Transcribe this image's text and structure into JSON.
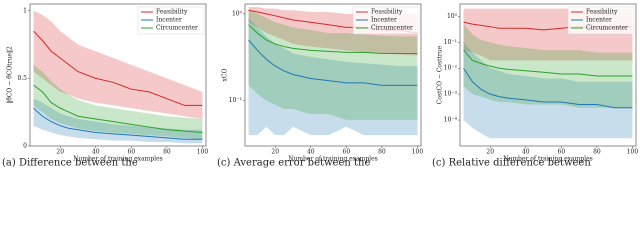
{
  "chart_data": [
    {
      "type": "line",
      "caption": "(a) Difference between the",
      "x_label": "Number of training examples",
      "y_label": "‖θ̂CO − θ̂COtrue‖2",
      "log_y": false,
      "legend": "upper right",
      "xlim": [
        3,
        102
      ],
      "xticks": [
        20,
        40,
        60,
        80,
        100
      ],
      "ylim": [
        0,
        1.05
      ],
      "yticks": [
        0,
        0.5,
        1
      ],
      "x": [
        5,
        10,
        15,
        20,
        25,
        30,
        40,
        50,
        60,
        70,
        80,
        90,
        100
      ],
      "series": [
        {
          "name": "Feasibility",
          "color": "#d62728",
          "values": [
            0.85,
            0.78,
            0.7,
            0.65,
            0.6,
            0.55,
            0.5,
            0.47,
            0.42,
            0.4,
            0.35,
            0.3,
            0.3
          ],
          "lower": [
            0.55,
            0.5,
            0.45,
            0.4,
            0.38,
            0.35,
            0.32,
            0.3,
            0.28,
            0.26,
            0.24,
            0.22,
            0.2
          ],
          "upper": [
            1.0,
            0.97,
            0.92,
            0.85,
            0.8,
            0.75,
            0.7,
            0.65,
            0.6,
            0.55,
            0.5,
            0.45,
            0.4
          ]
        },
        {
          "name": "Incenter",
          "color": "#1f77b4",
          "values": [
            0.28,
            0.22,
            0.18,
            0.15,
            0.13,
            0.12,
            0.1,
            0.09,
            0.08,
            0.07,
            0.06,
            0.05,
            0.05
          ],
          "lower": [
            0.15,
            0.12,
            0.1,
            0.08,
            0.07,
            0.06,
            0.05,
            0.04,
            0.04,
            0.03,
            0.03,
            0.02,
            0.02
          ],
          "upper": [
            0.35,
            0.32,
            0.28,
            0.24,
            0.22,
            0.2,
            0.18,
            0.16,
            0.15,
            0.14,
            0.13,
            0.12,
            0.12
          ]
        },
        {
          "name": "Circumcenter",
          "color": "#2ca02c",
          "values": [
            0.45,
            0.4,
            0.32,
            0.28,
            0.25,
            0.22,
            0.2,
            0.18,
            0.16,
            0.14,
            0.12,
            0.11,
            0.1
          ],
          "lower": [
            0.3,
            0.25,
            0.2,
            0.17,
            0.15,
            0.13,
            0.11,
            0.1,
            0.09,
            0.08,
            0.07,
            0.06,
            0.05
          ],
          "upper": [
            0.6,
            0.55,
            0.48,
            0.42,
            0.38,
            0.34,
            0.3,
            0.28,
            0.26,
            0.24,
            0.22,
            0.21,
            0.2
          ]
        }
      ]
    },
    {
      "type": "line",
      "caption": "(c) Average error between the",
      "x_label": "Number of training examples",
      "y_label": "xCO",
      "log_y": true,
      "legend": "upper right",
      "xlim": [
        3,
        102
      ],
      "xticks": [
        20,
        40,
        60,
        80,
        100
      ],
      "ylim": [
        0.03,
        1.3
      ],
      "yticks": [
        {
          "value": 0.1,
          "label": "10⁻¹"
        },
        {
          "value": 1,
          "label": "10⁰"
        }
      ],
      "x": [
        5,
        10,
        15,
        20,
        25,
        30,
        40,
        50,
        60,
        70,
        80,
        90,
        100
      ],
      "series": [
        {
          "name": "Feasibility",
          "color": "#d62728",
          "values": [
            1.1,
            1.05,
            1.0,
            0.95,
            0.9,
            0.85,
            0.8,
            0.75,
            0.7,
            0.7,
            0.65,
            0.65,
            0.6
          ],
          "lower": [
            0.8,
            0.7,
            0.6,
            0.55,
            0.5,
            0.45,
            0.42,
            0.4,
            0.38,
            0.36,
            0.35,
            0.34,
            0.33
          ],
          "upper": [
            1.2,
            1.2,
            1.15,
            1.15,
            1.1,
            1.1,
            1.05,
            1.05,
            1.0,
            1.0,
            1.0,
            1.0,
            1.0
          ]
        },
        {
          "name": "Incenter",
          "color": "#1f77b4",
          "values": [
            0.5,
            0.38,
            0.3,
            0.25,
            0.22,
            0.2,
            0.18,
            0.17,
            0.16,
            0.16,
            0.15,
            0.15,
            0.15
          ],
          "lower": [
            0.04,
            0.04,
            0.05,
            0.04,
            0.04,
            0.05,
            0.04,
            0.04,
            0.05,
            0.04,
            0.04,
            0.04,
            0.04
          ],
          "upper": [
            0.9,
            0.7,
            0.55,
            0.45,
            0.4,
            0.35,
            0.32,
            0.3,
            0.28,
            0.27,
            0.26,
            0.25,
            0.25
          ]
        },
        {
          "name": "Circumcenter",
          "color": "#2ca02c",
          "values": [
            0.75,
            0.6,
            0.5,
            0.45,
            0.42,
            0.4,
            0.38,
            0.37,
            0.36,
            0.36,
            0.35,
            0.35,
            0.35
          ],
          "lower": [
            0.15,
            0.12,
            0.1,
            0.09,
            0.08,
            0.08,
            0.07,
            0.07,
            0.06,
            0.06,
            0.06,
            0.06,
            0.06
          ],
          "upper": [
            1.1,
            1.0,
            0.9,
            0.8,
            0.75,
            0.7,
            0.65,
            0.6,
            0.6,
            0.58,
            0.56,
            0.55,
            0.55
          ]
        }
      ]
    },
    {
      "type": "line",
      "caption": "(c) Relative difference between",
      "x_label": "Number of training examples",
      "y_label": "CostCO − Costtrue",
      "log_y": true,
      "legend": "upper right",
      "xlim": [
        3,
        102
      ],
      "xticks": [
        20,
        40,
        60,
        80,
        100
      ],
      "ylim": [
        1e-05,
        3
      ],
      "yticks": [
        {
          "value": 0.0001,
          "label": "10⁻⁴"
        },
        {
          "value": 0.001,
          "label": "10⁻³"
        },
        {
          "value": 0.01,
          "label": "10⁻²"
        },
        {
          "value": 0.1,
          "label": "10⁻¹"
        },
        {
          "value": 1,
          "label": "10⁰"
        }
      ],
      "x": [
        5,
        10,
        15,
        20,
        25,
        30,
        40,
        50,
        60,
        70,
        80,
        90,
        100
      ],
      "series": [
        {
          "name": "Feasibility",
          "color": "#d62728",
          "values": [
            0.6,
            0.5,
            0.45,
            0.4,
            0.35,
            0.35,
            0.35,
            0.3,
            0.35,
            0.4,
            0.35,
            0.35,
            0.4
          ],
          "lower": [
            0.05,
            0.04,
            0.03,
            0.02,
            0.02,
            0.02,
            0.02,
            0.02,
            0.02,
            0.02,
            0.02,
            0.02,
            0.02
          ],
          "upper": [
            2,
            2,
            2,
            2,
            2,
            2,
            2,
            2,
            2,
            2,
            2,
            2,
            2
          ]
        },
        {
          "name": "Incenter",
          "color": "#1f77b4",
          "values": [
            0.01,
            0.003,
            0.0015,
            0.001,
            0.0008,
            0.0007,
            0.0006,
            0.0005,
            0.0005,
            0.0004,
            0.0004,
            0.0003,
            0.0003
          ],
          "lower": [
            0.0001,
            5e-05,
            3e-05,
            2e-05,
            2e-05,
            2e-05,
            2e-05,
            2e-05,
            2e-05,
            2e-05,
            2e-05,
            2e-05,
            2e-05
          ],
          "upper": [
            0.1,
            0.04,
            0.02,
            0.01,
            0.008,
            0.006,
            0.005,
            0.004,
            0.004,
            0.003,
            0.003,
            0.003,
            0.003
          ]
        },
        {
          "name": "Circumcenter",
          "color": "#2ca02c",
          "values": [
            0.05,
            0.02,
            0.015,
            0.012,
            0.01,
            0.009,
            0.008,
            0.007,
            0.006,
            0.006,
            0.005,
            0.005,
            0.005
          ],
          "lower": [
            0.002,
            0.001,
            0.0008,
            0.0006,
            0.0005,
            0.0005,
            0.0004,
            0.0004,
            0.0004,
            0.0003,
            0.0003,
            0.0003,
            0.0003
          ],
          "upper": [
            0.5,
            0.2,
            0.12,
            0.1,
            0.08,
            0.07,
            0.06,
            0.05,
            0.05,
            0.05,
            0.04,
            0.04,
            0.04
          ]
        }
      ]
    }
  ]
}
